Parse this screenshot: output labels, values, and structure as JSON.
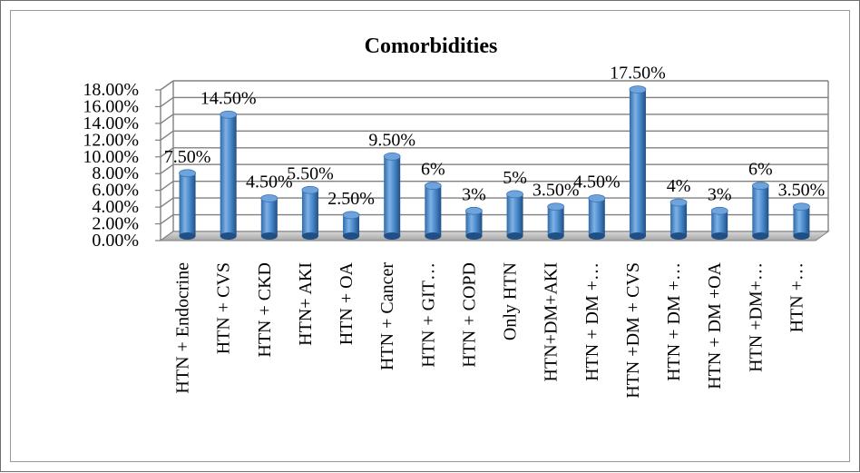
{
  "chart_data": {
    "type": "bar",
    "title": "Comorbidities",
    "xlabel": "",
    "ylabel": "",
    "categories": [
      "HTN + Endocrine",
      "HTN + CVS",
      "HTN + CKD",
      "HTN+ AKI",
      "HTN + OA",
      "HTN + Cancer",
      "HTN + GIT…",
      "HTN + COPD",
      "Only HTN",
      "HTN+DM+AKI",
      "HTN + DM +…",
      "HTN +DM + CVS",
      "HTN + DM +…",
      "HTN + DM +OA",
      "HTN +DM+…",
      "HTN +…"
    ],
    "values": [
      7.5,
      14.5,
      4.5,
      5.5,
      2.5,
      9.5,
      6,
      3,
      5,
      3.5,
      4.5,
      17.5,
      4,
      3,
      6,
      3.5
    ],
    "data_labels": [
      "7.50%",
      "14.50%",
      "4.50%",
      "5.50%",
      "2.50%",
      "9.50%",
      "6%",
      "3%",
      "5%",
      "3.50%",
      "4.50%",
      "17.50%",
      "4%",
      "3%",
      "6%",
      "3.50%"
    ],
    "y_ticks": [
      0,
      2,
      4,
      6,
      8,
      10,
      12,
      14,
      16,
      18
    ],
    "y_tick_labels": [
      "0.00%",
      "2.00%",
      "4.00%",
      "6.00%",
      "8.00%",
      "10.00%",
      "12.00%",
      "14.00%",
      "16.00%",
      "18.00%"
    ],
    "ylim": [
      0,
      18
    ],
    "grid": true,
    "legend": "none",
    "style": "3d-cylinder",
    "bar_color": "#4f81bd"
  }
}
